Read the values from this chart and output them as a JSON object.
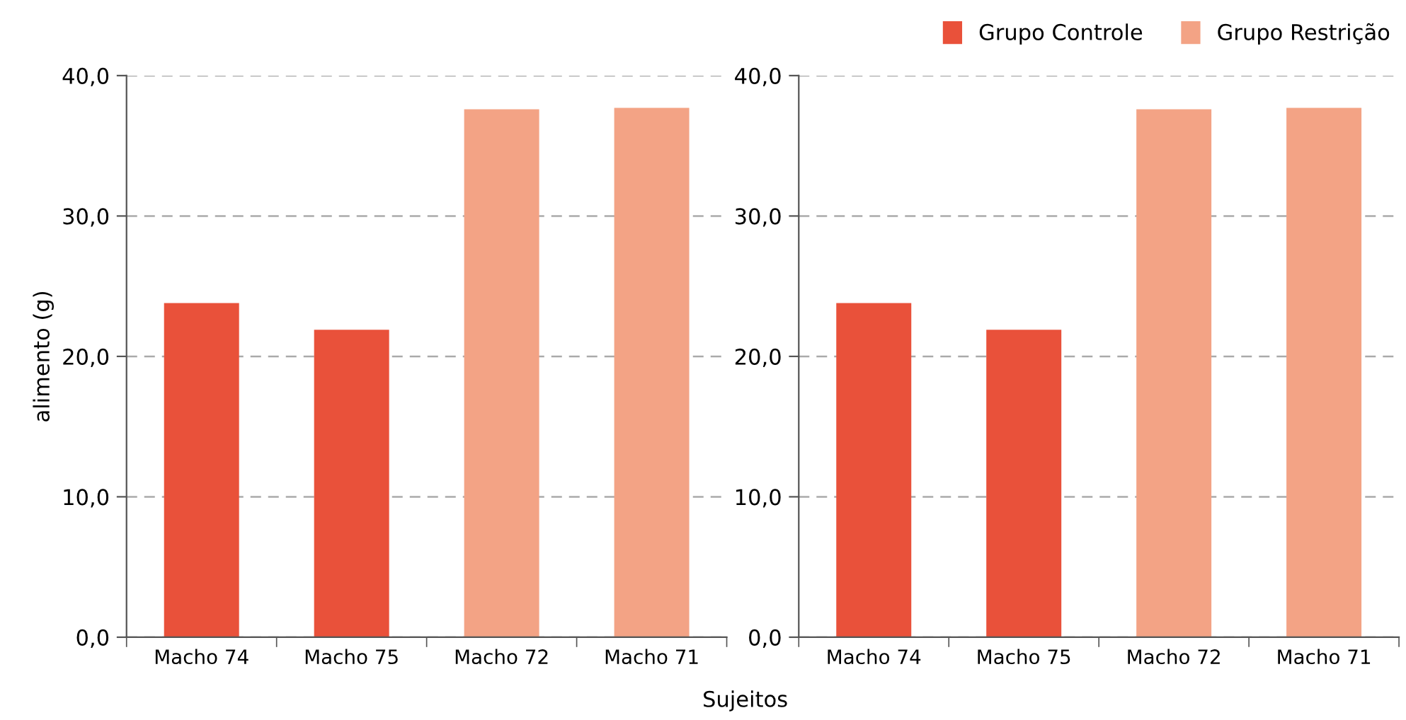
{
  "chart_data": [
    {
      "type": "bar",
      "ylabel": "alimento (g)",
      "xlabel": "Sujeitos",
      "categories": [
        "Macho 74",
        "Macho 75",
        "Macho 72",
        "Macho 71"
      ],
      "series": [
        {
          "color": "#e9513a",
          "values": [
            23.8,
            21.9,
            null,
            null
          ]
        },
        {
          "color": "#f3a385",
          "values": [
            null,
            null,
            37.6,
            37.7
          ]
        }
      ],
      "ylim": [
        0,
        40
      ],
      "yticks": [
        {
          "value": 0,
          "label": "0,0"
        },
        {
          "value": 10,
          "label": "10,0"
        },
        {
          "value": 20,
          "label": "20,0"
        },
        {
          "value": 30,
          "label": "30,0"
        },
        {
          "value": 40,
          "label": "40,0"
        }
      ],
      "grid": "y",
      "legend": false
    },
    {
      "type": "bar",
      "categories": [
        "Macho 74",
        "Macho 75",
        "Macho 72",
        "Macho 71"
      ],
      "series": [
        {
          "name": "Grupo Controle",
          "color": "#e9513a",
          "values": [
            23.8,
            21.9,
            null,
            null
          ]
        },
        {
          "name": "Grupo Restrição",
          "color": "#f3a385",
          "values": [
            null,
            null,
            37.6,
            37.7
          ]
        }
      ],
      "ylim": [
        0,
        40
      ],
      "yticks": [
        {
          "value": 0,
          "label": "0,0"
        },
        {
          "value": 10,
          "label": "10,0"
        },
        {
          "value": 20,
          "label": "20,0"
        },
        {
          "value": 30,
          "label": "30,0"
        },
        {
          "value": 40,
          "label": "40,0"
        }
      ],
      "grid": "y",
      "legend": "top right"
    }
  ]
}
